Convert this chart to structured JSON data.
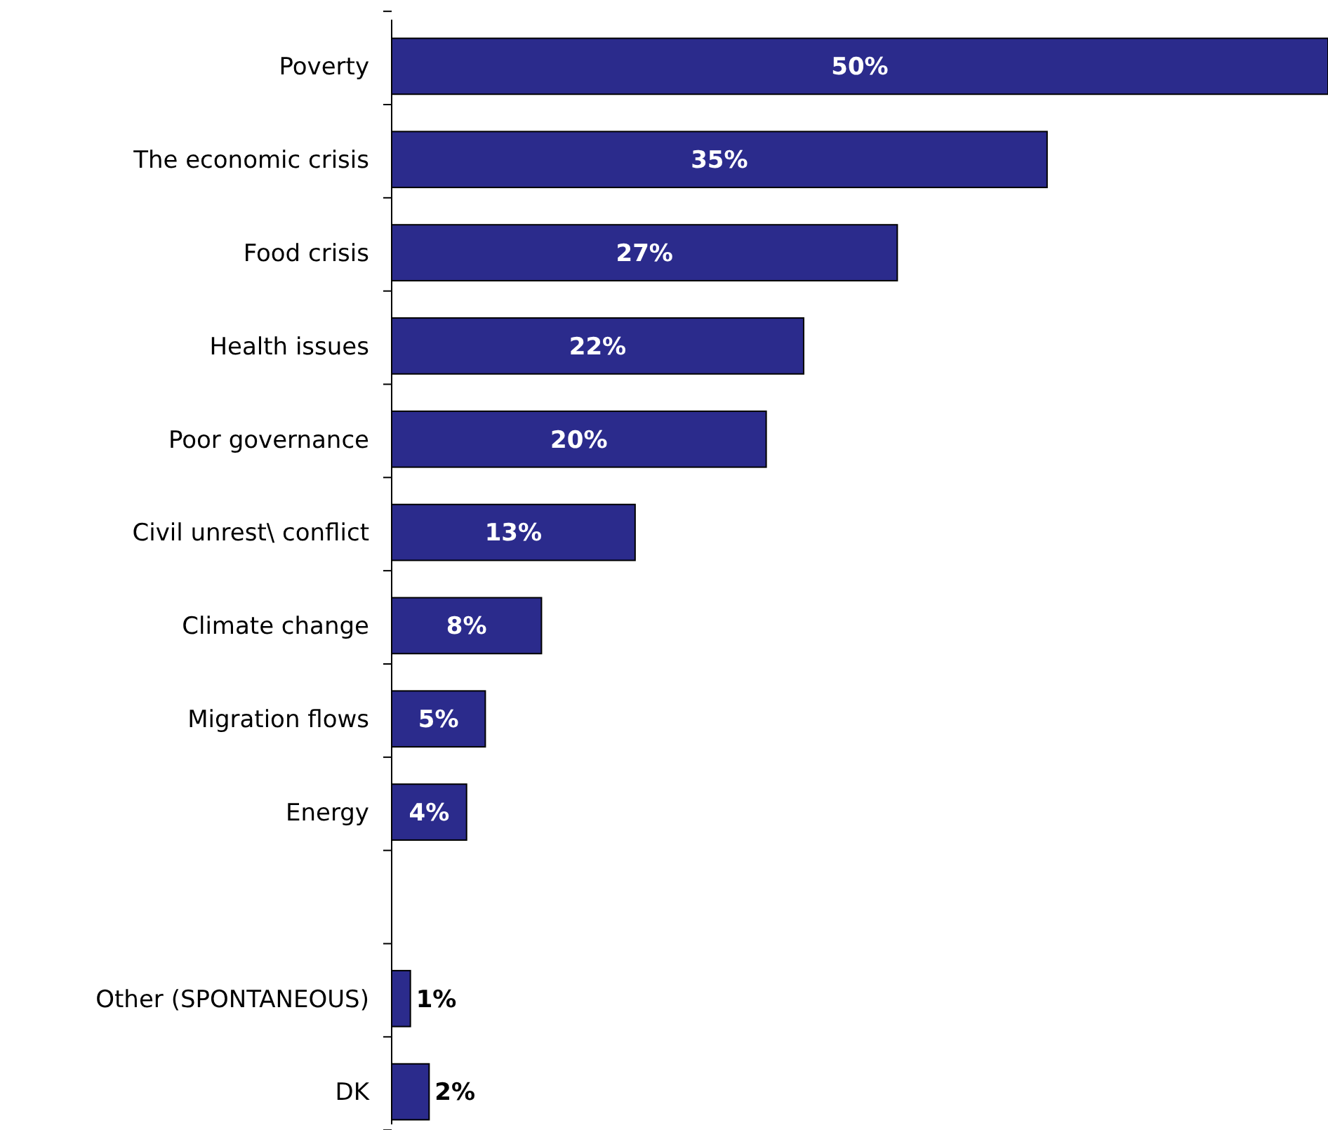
{
  "chart_data": {
    "type": "bar",
    "orientation": "horizontal",
    "categories": [
      "Poverty",
      "The economic crisis",
      "Food crisis",
      "Health issues",
      "Poor governance",
      "Civil unrest\\ conflict",
      "Climate change",
      "Migration flows",
      "Energy",
      null,
      "Other (SPONTANEOUS)",
      "DK"
    ],
    "values": [
      50,
      35,
      27,
      22,
      20,
      13,
      8,
      5,
      4,
      null,
      1,
      2
    ],
    "value_labels": [
      "50%",
      "35%",
      "27%",
      "22%",
      "20%",
      "13%",
      "8%",
      "5%",
      "4%",
      null,
      "1%",
      "2%"
    ],
    "color": "#2b2b8c"
  }
}
